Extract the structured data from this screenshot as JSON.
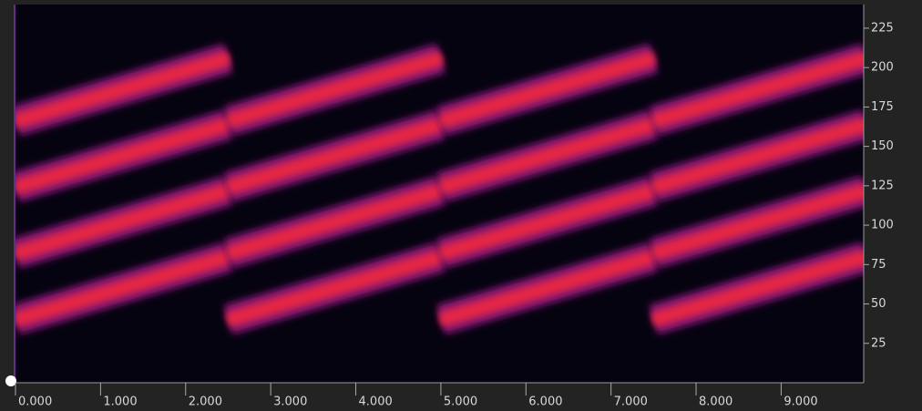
{
  "chart_data": {
    "type": "spectrogram",
    "xlim": [
      0,
      9.97
    ],
    "ylim": [
      0,
      240
    ],
    "xticks": [
      {
        "value": 0,
        "label": "0.000"
      },
      {
        "value": 1,
        "label": "1.000"
      },
      {
        "value": 2,
        "label": "2.000"
      },
      {
        "value": 3,
        "label": "3.000"
      },
      {
        "value": 4,
        "label": "4.000"
      },
      {
        "value": 5,
        "label": "5.000"
      },
      {
        "value": 6,
        "label": "6.000"
      },
      {
        "value": 7,
        "label": "7.000"
      },
      {
        "value": 8,
        "label": "8.000"
      },
      {
        "value": 9,
        "label": "9.000"
      }
    ],
    "yticks": [
      25,
      50,
      75,
      100,
      125,
      150,
      175,
      200,
      225
    ],
    "bands": [
      {
        "x": [
          0,
          2.5
        ],
        "y": [
          40,
          80
        ]
      },
      {
        "x": [
          0,
          2.5
        ],
        "y": [
          82,
          122
        ]
      },
      {
        "x": [
          0,
          2.5
        ],
        "y": [
          124,
          164
        ]
      },
      {
        "x": [
          0,
          2.5
        ],
        "y": [
          166,
          206
        ]
      },
      {
        "x": [
          2.5,
          5
        ],
        "y": [
          40,
          80
        ]
      },
      {
        "x": [
          2.5,
          5
        ],
        "y": [
          82,
          122
        ]
      },
      {
        "x": [
          2.5,
          5
        ],
        "y": [
          124,
          164
        ]
      },
      {
        "x": [
          2.5,
          5
        ],
        "y": [
          166,
          206
        ]
      },
      {
        "x": [
          5,
          7.5
        ],
        "y": [
          40,
          80
        ]
      },
      {
        "x": [
          5,
          7.5
        ],
        "y": [
          82,
          122
        ]
      },
      {
        "x": [
          5,
          7.5
        ],
        "y": [
          124,
          164
        ]
      },
      {
        "x": [
          5,
          7.5
        ],
        "y": [
          166,
          206
        ]
      },
      {
        "x": [
          7.5,
          10
        ],
        "y": [
          40,
          80
        ]
      },
      {
        "x": [
          7.5,
          10
        ],
        "y": [
          82,
          122
        ]
      },
      {
        "x": [
          7.5,
          10
        ],
        "y": [
          124,
          164
        ]
      },
      {
        "x": [
          7.5,
          10
        ],
        "y": [
          166,
          206
        ]
      }
    ]
  }
}
